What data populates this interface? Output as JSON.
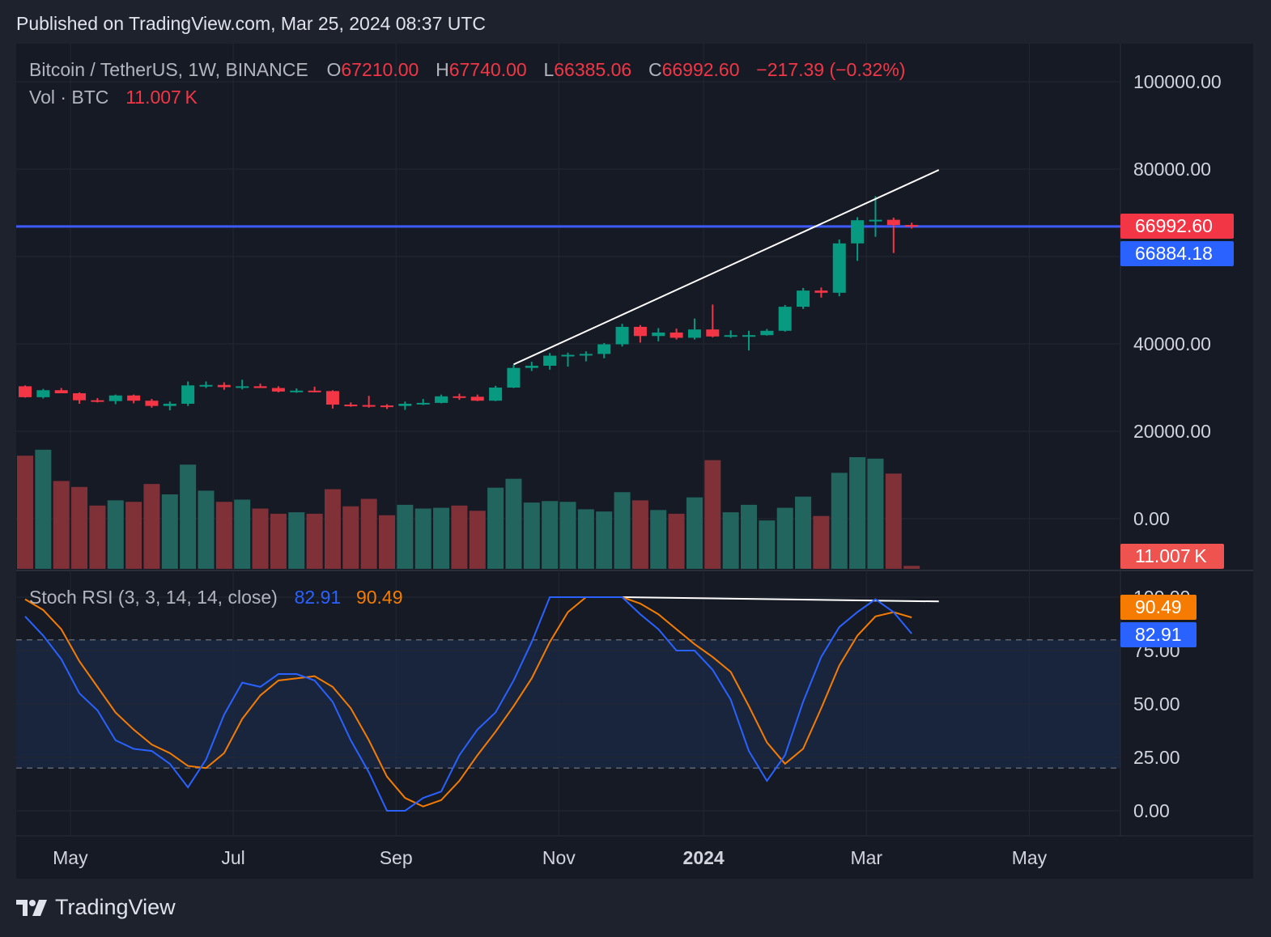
{
  "header": {
    "published": "Published on TradingView.com, Mar 25, 2024 08:37 UTC"
  },
  "legend": {
    "symbol": "Bitcoin / TetherUS, 1W, BINANCE",
    "o_label": "O",
    "o": "67210.00",
    "h_label": "H",
    "h": "67740.00",
    "l_label": "L",
    "l": "66385.06",
    "c_label": "C",
    "c": "66992.60",
    "change": "−217.39 (−0.32%)",
    "vol_label": "Vol · BTC",
    "vol": "11.007 K",
    "stoch_label": "Stoch RSI (3, 3, 14, 14, close)",
    "stoch_k": "82.91",
    "stoch_d": "90.49"
  },
  "price_tags": {
    "last": "66992.60",
    "line": "66884.18",
    "vol": "11.007 K",
    "stoch_d": "90.49",
    "stoch_k": "82.91"
  },
  "colors": {
    "up": "#089981",
    "down": "#f23645",
    "k": "#2962ff",
    "d": "#f57c00",
    "hline": "#3d5afe",
    "trend": "#ffffff"
  },
  "brand": {
    "name": "TradingView"
  },
  "chart_data": {
    "type": "candlestick",
    "price_axis": {
      "ticks": [
        "100000.00",
        "80000.00",
        "40000.00",
        "20000.00",
        "0.00"
      ],
      "tick_values": [
        100000,
        80000,
        40000,
        20000,
        0
      ]
    },
    "rsi_axis": {
      "ticks": [
        "100.00",
        "75.00",
        "50.00",
        "25.00",
        "0.00"
      ],
      "tick_values": [
        100,
        75,
        50,
        25,
        0
      ],
      "bands": [
        80,
        20
      ]
    },
    "x_ticks": [
      {
        "label": "May",
        "week": 2.5
      },
      {
        "label": "Jul",
        "week": 11.5
      },
      {
        "label": "Sep",
        "week": 20.5
      },
      {
        "label": "Nov",
        "week": 29.5
      },
      {
        "label": "2024",
        "week": 37.5,
        "bold": true
      },
      {
        "label": "Mar",
        "week": 46.5
      },
      {
        "label": "May",
        "week": 55.5
      }
    ],
    "horizontal_line": 66884.18,
    "trendlines": [
      {
        "pane": "price",
        "from": {
          "week": 27,
          "value": 35300
        },
        "to": {
          "week": 50.5,
          "value": 79800
        }
      },
      {
        "pane": "rsi",
        "from": {
          "week": 33,
          "value": 100
        },
        "to": {
          "week": 50.5,
          "value": 98
        }
      }
    ],
    "candles": [
      {
        "o": 30300,
        "h": 30500,
        "l": 27700,
        "c": 27800,
        "v": 15.2
      },
      {
        "o": 27800,
        "h": 29700,
        "l": 27500,
        "c": 29400,
        "v": 16.0
      },
      {
        "o": 29400,
        "h": 29900,
        "l": 28700,
        "c": 28700,
        "v": 11.8
      },
      {
        "o": 28700,
        "h": 28900,
        "l": 26300,
        "c": 27100,
        "v": 11.0
      },
      {
        "o": 27100,
        "h": 27600,
        "l": 26600,
        "c": 26900,
        "v": 8.5
      },
      {
        "o": 26900,
        "h": 28400,
        "l": 26200,
        "c": 28200,
        "v": 9.2
      },
      {
        "o": 28200,
        "h": 28400,
        "l": 26400,
        "c": 27000,
        "v": 9.0
      },
      {
        "o": 27000,
        "h": 27400,
        "l": 25400,
        "c": 25800,
        "v": 11.4
      },
      {
        "o": 25800,
        "h": 26800,
        "l": 24800,
        "c": 26300,
        "v": 10.0
      },
      {
        "o": 26300,
        "h": 31400,
        "l": 25800,
        "c": 30500,
        "v": 14.0
      },
      {
        "o": 30500,
        "h": 31400,
        "l": 29900,
        "c": 30600,
        "v": 10.5
      },
      {
        "o": 30600,
        "h": 31200,
        "l": 29500,
        "c": 30100,
        "v": 9.0
      },
      {
        "o": 30100,
        "h": 31800,
        "l": 29600,
        "c": 30300,
        "v": 9.3
      },
      {
        "o": 30300,
        "h": 30900,
        "l": 29900,
        "c": 29900,
        "v": 8.1
      },
      {
        "o": 29900,
        "h": 30300,
        "l": 28900,
        "c": 29100,
        "v": 7.4
      },
      {
        "o": 29100,
        "h": 29800,
        "l": 28800,
        "c": 29300,
        "v": 7.6
      },
      {
        "o": 29300,
        "h": 30200,
        "l": 28900,
        "c": 29200,
        "v": 7.4
      },
      {
        "o": 29200,
        "h": 29400,
        "l": 25200,
        "c": 26100,
        "v": 10.7
      },
      {
        "o": 26100,
        "h": 26600,
        "l": 25600,
        "c": 26000,
        "v": 8.4
      },
      {
        "o": 26000,
        "h": 28100,
        "l": 25400,
        "c": 25900,
        "v": 9.4
      },
      {
        "o": 25900,
        "h": 26200,
        "l": 25100,
        "c": 25800,
        "v": 7.2
      },
      {
        "o": 25800,
        "h": 26800,
        "l": 24900,
        "c": 26300,
        "v": 8.6
      },
      {
        "o": 26300,
        "h": 27400,
        "l": 26000,
        "c": 26500,
        "v": 8.1
      },
      {
        "o": 26500,
        "h": 28400,
        "l": 26400,
        "c": 28000,
        "v": 8.2
      },
      {
        "o": 28000,
        "h": 28600,
        "l": 27200,
        "c": 27900,
        "v": 8.5
      },
      {
        "o": 27900,
        "h": 28400,
        "l": 26900,
        "c": 27000,
        "v": 7.8
      },
      {
        "o": 27000,
        "h": 30400,
        "l": 26900,
        "c": 30000,
        "v": 10.9
      },
      {
        "o": 30000,
        "h": 35200,
        "l": 29900,
        "c": 34500,
        "v": 12.1
      },
      {
        "o": 34500,
        "h": 35900,
        "l": 33800,
        "c": 35000,
        "v": 8.9
      },
      {
        "o": 35000,
        "h": 37900,
        "l": 34100,
        "c": 37300,
        "v": 9.1
      },
      {
        "o": 37300,
        "h": 38000,
        "l": 34800,
        "c": 37500,
        "v": 9.0
      },
      {
        "o": 37500,
        "h": 38300,
        "l": 36000,
        "c": 37700,
        "v": 8.0
      },
      {
        "o": 37700,
        "h": 40200,
        "l": 36700,
        "c": 39900,
        "v": 7.7
      },
      {
        "o": 39900,
        "h": 44600,
        "l": 39400,
        "c": 43900,
        "v": 10.3
      },
      {
        "o": 43900,
        "h": 44300,
        "l": 40300,
        "c": 41800,
        "v": 9.2
      },
      {
        "o": 41800,
        "h": 43600,
        "l": 40600,
        "c": 42600,
        "v": 7.9
      },
      {
        "o": 42600,
        "h": 43500,
        "l": 41000,
        "c": 41400,
        "v": 7.4
      },
      {
        "o": 41400,
        "h": 45800,
        "l": 41000,
        "c": 43300,
        "v": 9.6
      },
      {
        "o": 43300,
        "h": 49000,
        "l": 41500,
        "c": 41700,
        "v": 14.6
      },
      {
        "o": 41700,
        "h": 43100,
        "l": 41400,
        "c": 42000,
        "v": 7.6
      },
      {
        "o": 42000,
        "h": 43000,
        "l": 38500,
        "c": 42000,
        "v": 8.6
      },
      {
        "o": 42000,
        "h": 43400,
        "l": 41900,
        "c": 43000,
        "v": 6.5
      },
      {
        "o": 43000,
        "h": 48900,
        "l": 42800,
        "c": 48500,
        "v": 8.2
      },
      {
        "o": 48500,
        "h": 52800,
        "l": 48000,
        "c": 52200,
        "v": 9.7
      },
      {
        "o": 52200,
        "h": 52900,
        "l": 50600,
        "c": 51700,
        "v": 7.1
      },
      {
        "o": 51700,
        "h": 63900,
        "l": 50900,
        "c": 63000,
        "v": 12.9
      },
      {
        "o": 63000,
        "h": 69000,
        "l": 59000,
        "c": 68300,
        "v": 15.0
      },
      {
        "o": 68300,
        "h": 73800,
        "l": 64500,
        "c": 68400,
        "v": 14.8
      },
      {
        "o": 68400,
        "h": 68900,
        "l": 60800,
        "c": 67200,
        "v": 12.8
      },
      {
        "o": 67210,
        "h": 67740,
        "l": 66385.06,
        "c": 66992.6,
        "v": 0.4
      }
    ],
    "stoch_rsi": {
      "k": [
        91,
        82,
        71,
        55,
        47,
        33,
        29,
        28,
        22,
        11,
        24,
        45,
        60,
        58,
        64,
        64,
        61,
        51,
        33,
        18,
        0,
        0,
        6,
        9,
        26,
        38,
        46,
        61,
        79,
        100,
        100,
        100,
        100,
        100,
        92,
        85,
        75,
        75,
        66,
        52,
        28,
        14,
        26,
        51,
        72,
        86,
        93,
        99,
        93,
        82.91
      ],
      "d": [
        99,
        94,
        85,
        70,
        58,
        46,
        38,
        31,
        27,
        21,
        20,
        27,
        43,
        54,
        61,
        62,
        63,
        58,
        48,
        33,
        16,
        6,
        2,
        5,
        14,
        26,
        37,
        49,
        62,
        79,
        93,
        100,
        100,
        100,
        97,
        92,
        85,
        78,
        72,
        65,
        49,
        32,
        22,
        29,
        48,
        68,
        82,
        91,
        93,
        90.49
      ]
    }
  }
}
